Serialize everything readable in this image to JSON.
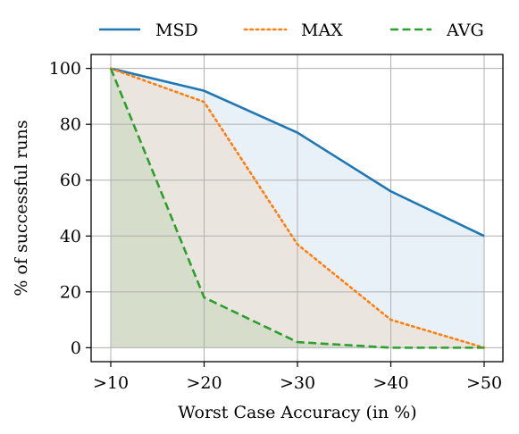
{
  "chart_data": {
    "type": "line",
    "categories": [
      ">10",
      ">20",
      ">30",
      ">40",
      ">50"
    ],
    "series": [
      {
        "name": "MSD",
        "values": [
          100,
          92,
          77,
          56,
          40
        ],
        "color": "#1f77b4",
        "style": "solid"
      },
      {
        "name": "MAX",
        "values": [
          100,
          88,
          37,
          10,
          0
        ],
        "color": "#ff7f0e",
        "style": "dotted"
      },
      {
        "name": "AVG",
        "values": [
          100,
          18,
          2,
          0,
          0
        ],
        "color": "#2ca02c",
        "style": "dashed"
      }
    ],
    "xlabel": "Worst Case Accuracy (in %)",
    "ylabel": "% of successful runs",
    "ylim": [
      -5,
      105
    ],
    "yticks": [
      0,
      20,
      40,
      60,
      80,
      100
    ],
    "grid": true,
    "fill_under_lines": true,
    "legend_position": "top"
  }
}
